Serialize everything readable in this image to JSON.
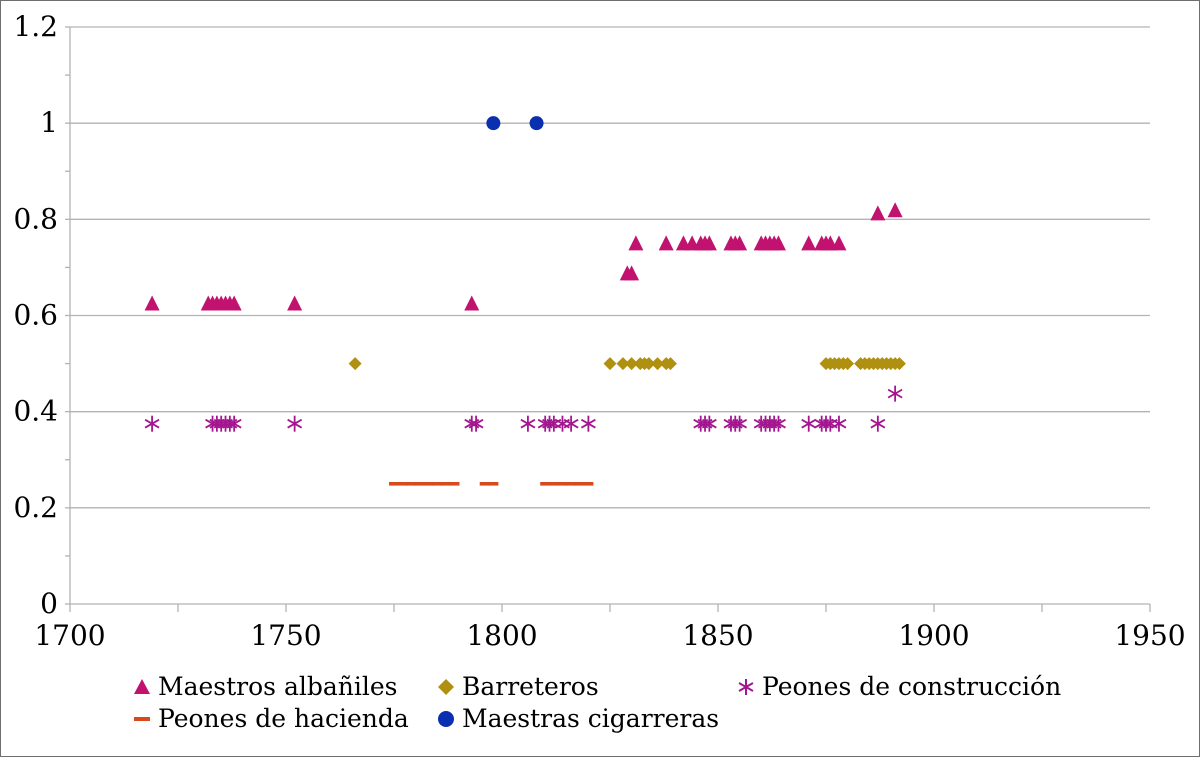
{
  "chart_data": {
    "type": "scatter",
    "title": "",
    "xlabel": "",
    "ylabel": "",
    "xlim": [
      1700,
      1950
    ],
    "ylim": [
      0,
      1.2
    ],
    "x_ticks": [
      1700,
      1750,
      1800,
      1850,
      1900,
      1950
    ],
    "y_ticks": [
      0,
      0.2,
      0.4,
      0.6,
      0.8,
      1,
      1.2
    ],
    "y_tick_labels": [
      "0",
      "0.2",
      "0.4",
      "0.6",
      "0.8",
      "1",
      "1.2"
    ],
    "grid": "horizontal",
    "legend_position": "bottom",
    "series": [
      {
        "name": "Maestros albañiles",
        "marker": "triangle",
        "color": "#c0126e",
        "points": [
          [
            1719,
            0.625
          ],
          [
            1732,
            0.625
          ],
          [
            1733,
            0.625
          ],
          [
            1734,
            0.625
          ],
          [
            1735,
            0.625
          ],
          [
            1736,
            0.625
          ],
          [
            1737,
            0.625
          ],
          [
            1738,
            0.625
          ],
          [
            1752,
            0.625
          ],
          [
            1793,
            0.625
          ],
          [
            1829,
            0.6875
          ],
          [
            1830,
            0.6875
          ],
          [
            1831,
            0.75
          ],
          [
            1838,
            0.75
          ],
          [
            1842,
            0.75
          ],
          [
            1844,
            0.75
          ],
          [
            1846,
            0.75
          ],
          [
            1847,
            0.75
          ],
          [
            1848,
            0.75
          ],
          [
            1853,
            0.75
          ],
          [
            1854,
            0.75
          ],
          [
            1855,
            0.75
          ],
          [
            1860,
            0.75
          ],
          [
            1861,
            0.75
          ],
          [
            1862,
            0.75
          ],
          [
            1863,
            0.75
          ],
          [
            1864,
            0.75
          ],
          [
            1871,
            0.75
          ],
          [
            1874,
            0.75
          ],
          [
            1875,
            0.75
          ],
          [
            1876,
            0.75
          ],
          [
            1878,
            0.75
          ],
          [
            1887,
            0.8125
          ],
          [
            1891,
            0.8188
          ]
        ]
      },
      {
        "name": "Barreteros",
        "marker": "diamond",
        "color": "#b09010",
        "points": [
          [
            1766,
            0.5
          ],
          [
            1825,
            0.5
          ],
          [
            1828,
            0.5
          ],
          [
            1830,
            0.5
          ],
          [
            1832,
            0.5
          ],
          [
            1833,
            0.5
          ],
          [
            1834,
            0.5
          ],
          [
            1836,
            0.5
          ],
          [
            1838,
            0.5
          ],
          [
            1839,
            0.5
          ],
          [
            1875,
            0.5
          ],
          [
            1876,
            0.5
          ],
          [
            1877,
            0.5
          ],
          [
            1878,
            0.5
          ],
          [
            1879,
            0.5
          ],
          [
            1880,
            0.5
          ],
          [
            1883,
            0.5
          ],
          [
            1884,
            0.5
          ],
          [
            1885,
            0.5
          ],
          [
            1886,
            0.5
          ],
          [
            1887,
            0.5
          ],
          [
            1888,
            0.5
          ],
          [
            1889,
            0.5
          ],
          [
            1890,
            0.5
          ],
          [
            1891,
            0.5
          ],
          [
            1892,
            0.5
          ]
        ]
      },
      {
        "name": "Peones de construcción",
        "marker": "asterisk",
        "color": "#a3168f",
        "points": [
          [
            1719,
            0.375
          ],
          [
            1733,
            0.375
          ],
          [
            1734,
            0.375
          ],
          [
            1735,
            0.375
          ],
          [
            1736,
            0.375
          ],
          [
            1737,
            0.375
          ],
          [
            1738,
            0.375
          ],
          [
            1752,
            0.375
          ],
          [
            1793,
            0.375
          ],
          [
            1794,
            0.375
          ],
          [
            1806,
            0.375
          ],
          [
            1810,
            0.375
          ],
          [
            1811,
            0.375
          ],
          [
            1812,
            0.375
          ],
          [
            1814,
            0.375
          ],
          [
            1816,
            0.375
          ],
          [
            1820,
            0.375
          ],
          [
            1846,
            0.375
          ],
          [
            1847,
            0.375
          ],
          [
            1848,
            0.375
          ],
          [
            1853,
            0.375
          ],
          [
            1854,
            0.375
          ],
          [
            1855,
            0.375
          ],
          [
            1860,
            0.375
          ],
          [
            1861,
            0.375
          ],
          [
            1862,
            0.375
          ],
          [
            1863,
            0.375
          ],
          [
            1864,
            0.375
          ],
          [
            1871,
            0.375
          ],
          [
            1874,
            0.375
          ],
          [
            1875,
            0.375
          ],
          [
            1876,
            0.375
          ],
          [
            1878,
            0.375
          ],
          [
            1887,
            0.375
          ],
          [
            1891,
            0.4375
          ]
        ]
      },
      {
        "name": "Peones de hacienda",
        "marker": "dash",
        "color": "#d64a1e",
        "points": [
          [
            1775,
            0.25
          ],
          [
            1777,
            0.25
          ],
          [
            1779,
            0.25
          ],
          [
            1781,
            0.25
          ],
          [
            1783,
            0.25
          ],
          [
            1785,
            0.25
          ],
          [
            1787,
            0.25
          ],
          [
            1789,
            0.25
          ],
          [
            1796,
            0.25
          ],
          [
            1798,
            0.25
          ],
          [
            1810,
            0.25
          ],
          [
            1812,
            0.25
          ],
          [
            1814,
            0.25
          ],
          [
            1816,
            0.25
          ],
          [
            1818,
            0.25
          ],
          [
            1820,
            0.25
          ]
        ]
      },
      {
        "name": "Maestras cigarreras",
        "marker": "circle",
        "color": "#0a2fb0",
        "points": [
          [
            1798,
            1.0
          ],
          [
            1808,
            1.0
          ]
        ]
      }
    ]
  }
}
